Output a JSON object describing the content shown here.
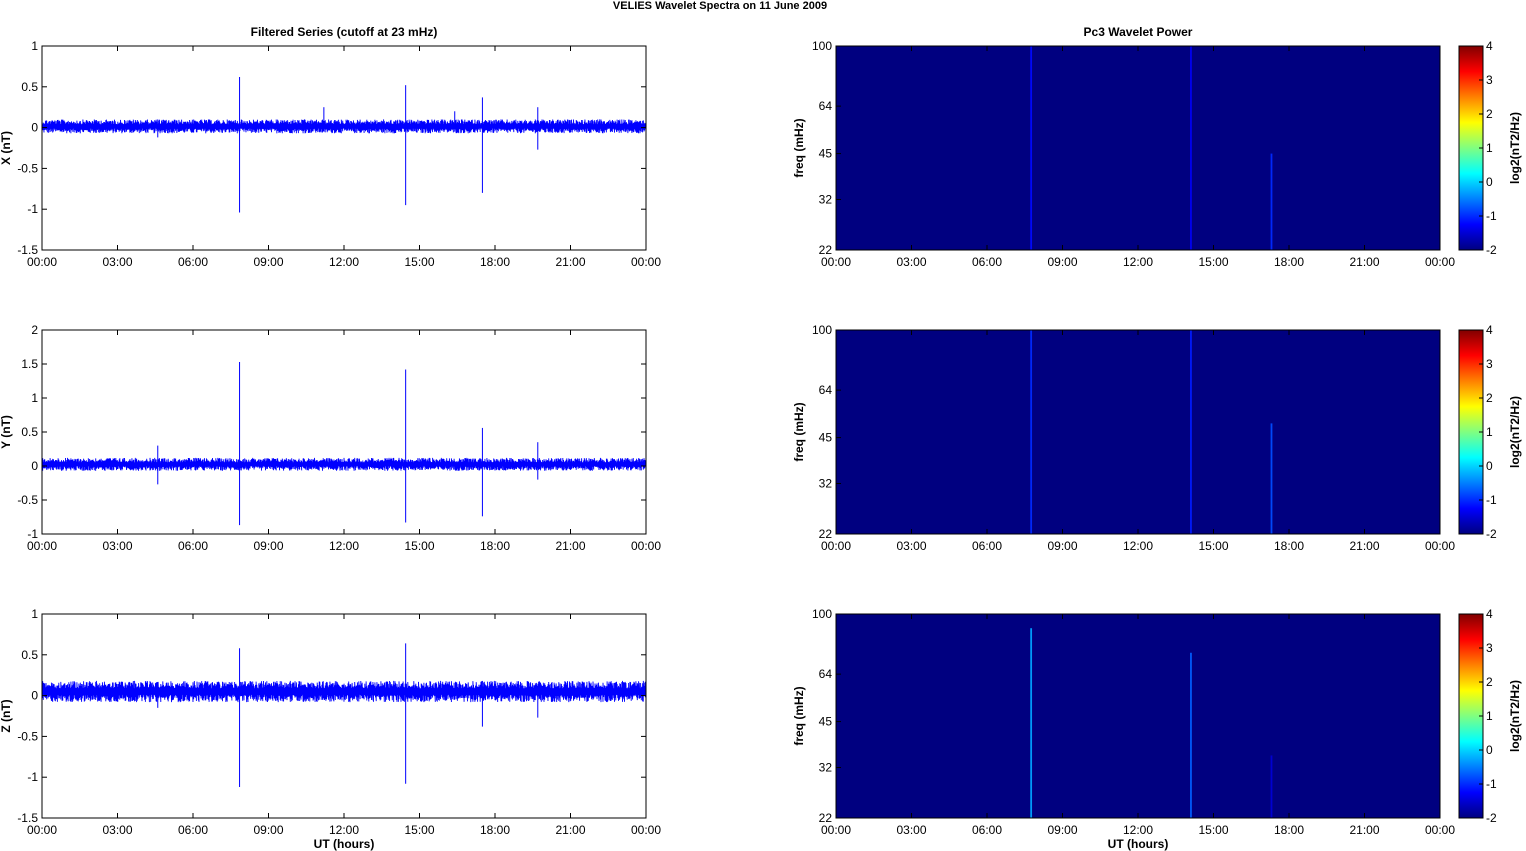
{
  "figure": {
    "title": "VELIES Wavelet Spectra on 11 June      2009"
  },
  "chart_data": [
    {
      "type": "line",
      "title": "Filtered Series (cutoff at 23 mHz)",
      "ylabel": "X (nT)",
      "xlabel": "",
      "xlim": [
        0,
        24
      ],
      "ylim": [
        -1.5,
        1
      ],
      "x_ticks": [
        "00:00",
        "03:00",
        "06:00",
        "09:00",
        "12:00",
        "15:00",
        "18:00",
        "21:00",
        "00:00"
      ],
      "y_ticks": [
        "1",
        "0.5",
        "0",
        "-0.5",
        "-1",
        "-1.5"
      ],
      "y_tick_values": [
        1,
        0.5,
        0,
        -0.5,
        -1,
        -1.5
      ],
      "color": "#0000ff",
      "noise_band": [
        -0.07,
        0.1
      ],
      "spikes": [
        {
          "t": 4.6,
          "min": -0.12,
          "max": 0.1
        },
        {
          "t": 7.85,
          "min": -1.04,
          "max": 0.62
        },
        {
          "t": 11.2,
          "min": -0.05,
          "max": 0.25
        },
        {
          "t": 14.45,
          "min": -0.95,
          "max": 0.52
        },
        {
          "t": 16.4,
          "min": -0.05,
          "max": 0.2
        },
        {
          "t": 17.5,
          "min": -0.8,
          "max": 0.37
        },
        {
          "t": 19.7,
          "min": -0.27,
          "max": 0.25
        }
      ]
    },
    {
      "type": "line",
      "title": "",
      "ylabel": "Y (nT)",
      "xlabel": "",
      "xlim": [
        0,
        24
      ],
      "ylim": [
        -1,
        2
      ],
      "x_ticks": [
        "00:00",
        "03:00",
        "06:00",
        "09:00",
        "12:00",
        "15:00",
        "18:00",
        "21:00",
        "00:00"
      ],
      "y_ticks": [
        "2",
        "1.5",
        "1",
        "0.5",
        "0",
        "-0.5",
        "-1"
      ],
      "y_tick_values": [
        2,
        1.5,
        1,
        0.5,
        0,
        -0.5,
        -1
      ],
      "color": "#0000ff",
      "noise_band": [
        -0.07,
        0.12
      ],
      "spikes": [
        {
          "t": 4.6,
          "min": -0.27,
          "max": 0.3
        },
        {
          "t": 7.85,
          "min": -0.87,
          "max": 1.53
        },
        {
          "t": 14.45,
          "min": -0.83,
          "max": 1.42
        },
        {
          "t": 17.5,
          "min": -0.74,
          "max": 0.56
        },
        {
          "t": 19.7,
          "min": -0.2,
          "max": 0.35
        }
      ]
    },
    {
      "type": "line",
      "title": "",
      "ylabel": "Z (nT)",
      "xlabel": "UT (hours)",
      "xlim": [
        0,
        24
      ],
      "ylim": [
        -1.5,
        1
      ],
      "x_ticks": [
        "00:00",
        "03:00",
        "06:00",
        "09:00",
        "12:00",
        "15:00",
        "18:00",
        "21:00",
        "00:00"
      ],
      "y_ticks": [
        "1",
        "0.5",
        "0",
        "-0.5",
        "-1",
        "-1.5"
      ],
      "y_tick_values": [
        1,
        0.5,
        0,
        -0.5,
        -1,
        -1.5
      ],
      "color": "#0000ff",
      "noise_band": [
        -0.08,
        0.18
      ],
      "spikes": [
        {
          "t": 4.6,
          "min": -0.15,
          "max": 0.12
        },
        {
          "t": 7.85,
          "min": -1.12,
          "max": 0.58
        },
        {
          "t": 14.45,
          "min": -1.08,
          "max": 0.64
        },
        {
          "t": 17.5,
          "min": -0.38,
          "max": 0.18
        },
        {
          "t": 19.7,
          "min": -0.27,
          "max": 0.1
        }
      ]
    },
    {
      "type": "heatmap",
      "title": "Pc3 Wavelet Power",
      "ylabel": "freq (mHz)",
      "xlabel": "",
      "xlim": [
        0,
        24
      ],
      "ylim": [
        22,
        100
      ],
      "y_scale": "log",
      "x_ticks": [
        "00:00",
        "03:00",
        "06:00",
        "09:00",
        "12:00",
        "15:00",
        "18:00",
        "21:00",
        "00:00"
      ],
      "y_ticks": [
        "100",
        "64",
        "45",
        "32",
        "22"
      ],
      "y_tick_values": [
        100,
        64,
        45,
        32,
        22
      ],
      "background_level": -2,
      "colorbar": {
        "label": "log2(nT2/Hz)",
        "range": [
          -2,
          4
        ],
        "ticks": [
          "4",
          "3",
          "2",
          "1",
          "0",
          "-1",
          "-2"
        ],
        "colormap": "jet"
      },
      "streaks": [
        {
          "t": 7.75,
          "fmax": 100,
          "level": -1.2
        },
        {
          "t": 14.1,
          "fmax": 100,
          "level": -1.3
        },
        {
          "t": 17.3,
          "fmax": 45,
          "level": -1.0
        }
      ]
    },
    {
      "type": "heatmap",
      "title": "",
      "ylabel": "freq (mHz)",
      "xlabel": "",
      "xlim": [
        0,
        24
      ],
      "ylim": [
        22,
        100
      ],
      "y_scale": "log",
      "x_ticks": [
        "00:00",
        "03:00",
        "06:00",
        "09:00",
        "12:00",
        "15:00",
        "18:00",
        "21:00",
        "00:00"
      ],
      "y_ticks": [
        "100",
        "64",
        "45",
        "32",
        "22"
      ],
      "y_tick_values": [
        100,
        64,
        45,
        32,
        22
      ],
      "background_level": -2,
      "colorbar": {
        "label": "log2(nT2/Hz)",
        "range": [
          -2,
          4
        ],
        "ticks": [
          "4",
          "3",
          "2",
          "1",
          "0",
          "-1",
          "-2"
        ],
        "colormap": "jet"
      },
      "streaks": [
        {
          "t": 7.75,
          "fmax": 100,
          "level": -1.0
        },
        {
          "t": 14.1,
          "fmax": 100,
          "level": -1.1
        },
        {
          "t": 17.3,
          "fmax": 50,
          "level": -0.8
        }
      ]
    },
    {
      "type": "heatmap",
      "title": "",
      "ylabel": "freq (mHz)",
      "xlabel": "UT (hours)",
      "xlim": [
        0,
        24
      ],
      "ylim": [
        22,
        100
      ],
      "y_scale": "log",
      "x_ticks": [
        "00:00",
        "03:00",
        "06:00",
        "09:00",
        "12:00",
        "15:00",
        "18:00",
        "21:00",
        "00:00"
      ],
      "y_ticks": [
        "100",
        "64",
        "45",
        "32",
        "22"
      ],
      "y_tick_values": [
        100,
        64,
        45,
        32,
        22
      ],
      "background_level": -2,
      "colorbar": {
        "label": "log2(nT2/Hz)",
        "range": [
          -2,
          4
        ],
        "ticks": [
          "4",
          "3",
          "2",
          "1",
          "0",
          "-1",
          "-2"
        ],
        "colormap": "jet"
      },
      "streaks": [
        {
          "t": 7.75,
          "fmax": 90,
          "level": -0.3
        },
        {
          "t": 14.1,
          "fmax": 75,
          "level": -0.7
        },
        {
          "t": 17.3,
          "fmax": 35,
          "level": -1.5
        }
      ]
    }
  ]
}
